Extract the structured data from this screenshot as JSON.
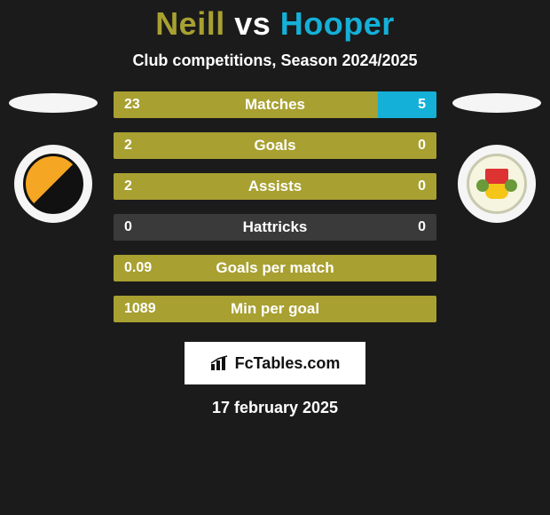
{
  "header": {
    "player_a": "Neill",
    "vs": "vs",
    "player_b": "Hooper",
    "player_a_color": "#a8a031",
    "player_b_color": "#14b0d8",
    "subtitle": "Club competitions, Season 2024/2025"
  },
  "colors": {
    "segment_a": "#a8a031",
    "segment_b": "#14b0d8",
    "neutral": "#3a3a3a",
    "background": "#1b1b1b",
    "text": "#ffffff"
  },
  "stats": [
    {
      "label": "Matches",
      "a": "23",
      "b": "5",
      "left_pct": 82,
      "right_pct": 18
    },
    {
      "label": "Goals",
      "a": "2",
      "b": "0",
      "left_pct": 100,
      "right_pct": 0
    },
    {
      "label": "Assists",
      "a": "2",
      "b": "0",
      "left_pct": 100,
      "right_pct": 0
    },
    {
      "label": "Hattricks",
      "a": "0",
      "b": "0",
      "left_pct": 0,
      "right_pct": 0
    },
    {
      "label": "Goals per match",
      "a": "0.09",
      "b": "",
      "left_pct": 100,
      "right_pct": 0
    },
    {
      "label": "Min per goal",
      "a": "1089",
      "b": "",
      "left_pct": 100,
      "right_pct": 0
    }
  ],
  "brand": "FcTables.com",
  "date": "17 february 2025"
}
